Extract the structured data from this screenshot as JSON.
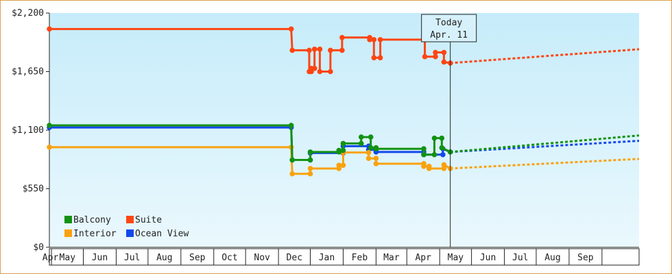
{
  "chart_data": {
    "type": "line",
    "y_tick_labels": [
      "$0",
      "$550",
      "$1,100",
      "$1,650",
      "$2,200"
    ],
    "y_tick_values": [
      0,
      550,
      1100,
      1650,
      2200
    ],
    "ylim": [
      0,
      2200
    ],
    "x_start": "2011-03-30",
    "x_end": "2012-10-06",
    "months": [
      "Apr",
      "May",
      "Jun",
      "Jul",
      "Aug",
      "Sep",
      "Oct",
      "Nov",
      "Dec",
      "Jan",
      "Feb",
      "Mar",
      "Apr",
      "May",
      "Jun",
      "Jul",
      "Aug",
      "Sep"
    ],
    "today_marker": {
      "title": "Today",
      "date_label": "Apr. 11",
      "date": "2012-04-11"
    },
    "legend": {
      "placement": "bottom-left"
    },
    "series": [
      {
        "name": "Balcony",
        "color": "#129212",
        "points": [
          [
            "2011-03-30",
            1145
          ],
          [
            "2011-11-13",
            1145
          ],
          [
            "2011-11-14",
            820
          ],
          [
            "2011-12-01",
            820
          ],
          [
            "2011-12-01",
            895
          ],
          [
            "2011-12-28",
            895
          ],
          [
            "2011-12-28",
            910
          ],
          [
            "2012-01-01",
            910
          ],
          [
            "2012-01-01",
            975
          ],
          [
            "2012-01-18",
            975
          ],
          [
            "2012-01-18",
            1035
          ],
          [
            "2012-01-27",
            1035
          ],
          [
            "2012-01-27",
            935
          ],
          [
            "2012-02-01",
            935
          ],
          [
            "2012-02-01",
            925
          ],
          [
            "2012-03-17",
            925
          ],
          [
            "2012-03-17",
            870
          ],
          [
            "2012-03-27",
            870
          ],
          [
            "2012-03-27",
            1025
          ],
          [
            "2012-04-03",
            1025
          ],
          [
            "2012-04-03",
            935
          ],
          [
            "2012-04-11",
            895
          ]
        ],
        "projection": [
          [
            "2012-04-11",
            895
          ],
          [
            "2012-10-06",
            1050
          ]
        ]
      },
      {
        "name": "Suite",
        "color": "#ff4512",
        "points": [
          [
            "2011-03-30",
            2050
          ],
          [
            "2011-11-13",
            2050
          ],
          [
            "2011-11-14",
            1850
          ],
          [
            "2011-11-30",
            1850
          ],
          [
            "2011-11-30",
            1650
          ],
          [
            "2011-12-02",
            1650
          ],
          [
            "2011-12-02",
            1680
          ],
          [
            "2011-12-05",
            1680
          ],
          [
            "2011-12-05",
            1860
          ],
          [
            "2011-12-10",
            1860
          ],
          [
            "2011-12-10",
            1650
          ],
          [
            "2011-12-20",
            1650
          ],
          [
            "2011-12-20",
            1850
          ],
          [
            "2011-12-31",
            1850
          ],
          [
            "2011-12-31",
            1970
          ],
          [
            "2012-01-26",
            1970
          ],
          [
            "2012-01-26",
            1950
          ],
          [
            "2012-01-30",
            1950
          ],
          [
            "2012-01-30",
            1780
          ],
          [
            "2012-02-05",
            1780
          ],
          [
            "2012-02-05",
            1950
          ],
          [
            "2012-03-18",
            1950
          ],
          [
            "2012-03-18",
            1790
          ],
          [
            "2012-03-28",
            1790
          ],
          [
            "2012-03-28",
            1830
          ],
          [
            "2012-04-05",
            1830
          ],
          [
            "2012-04-05",
            1740
          ],
          [
            "2012-04-11",
            1730
          ]
        ],
        "projection": [
          [
            "2012-04-11",
            1730
          ],
          [
            "2012-10-06",
            1860
          ]
        ]
      },
      {
        "name": "Interior",
        "color": "#f9a20f",
        "points": [
          [
            "2011-03-30",
            940
          ],
          [
            "2011-11-13",
            940
          ],
          [
            "2011-11-14",
            690
          ],
          [
            "2011-12-01",
            690
          ],
          [
            "2011-12-01",
            740
          ],
          [
            "2011-12-28",
            740
          ],
          [
            "2011-12-28",
            770
          ],
          [
            "2012-01-01",
            770
          ],
          [
            "2012-01-01",
            890
          ],
          [
            "2012-01-25",
            890
          ],
          [
            "2012-01-25",
            835
          ],
          [
            "2012-02-01",
            835
          ],
          [
            "2012-02-01",
            785
          ],
          [
            "2012-03-17",
            785
          ],
          [
            "2012-03-17",
            760
          ],
          [
            "2012-03-22",
            760
          ],
          [
            "2012-03-22",
            740
          ],
          [
            "2012-04-05",
            740
          ],
          [
            "2012-04-05",
            775
          ],
          [
            "2012-04-11",
            740
          ]
        ],
        "projection": [
          [
            "2012-04-11",
            740
          ],
          [
            "2012-10-06",
            830
          ]
        ]
      },
      {
        "name": "Ocean View",
        "color": "#1249ea",
        "points": [
          [
            "2011-03-30",
            1125
          ],
          [
            "2011-11-13",
            1125
          ],
          [
            "2011-11-14",
            820
          ],
          [
            "2011-12-01",
            820
          ],
          [
            "2011-12-01",
            885
          ],
          [
            "2012-01-01",
            885
          ],
          [
            "2012-01-01",
            950
          ],
          [
            "2012-01-25",
            950
          ],
          [
            "2012-01-25",
            915
          ],
          [
            "2012-02-01",
            915
          ],
          [
            "2012-02-01",
            895
          ],
          [
            "2012-03-17",
            895
          ],
          [
            "2012-03-17",
            870
          ],
          [
            "2012-04-04",
            870
          ],
          [
            "2012-04-04",
            925
          ],
          [
            "2012-04-11",
            895
          ]
        ],
        "projection": [
          [
            "2012-04-11",
            895
          ],
          [
            "2012-10-06",
            1000
          ]
        ]
      }
    ],
    "grid": false
  }
}
